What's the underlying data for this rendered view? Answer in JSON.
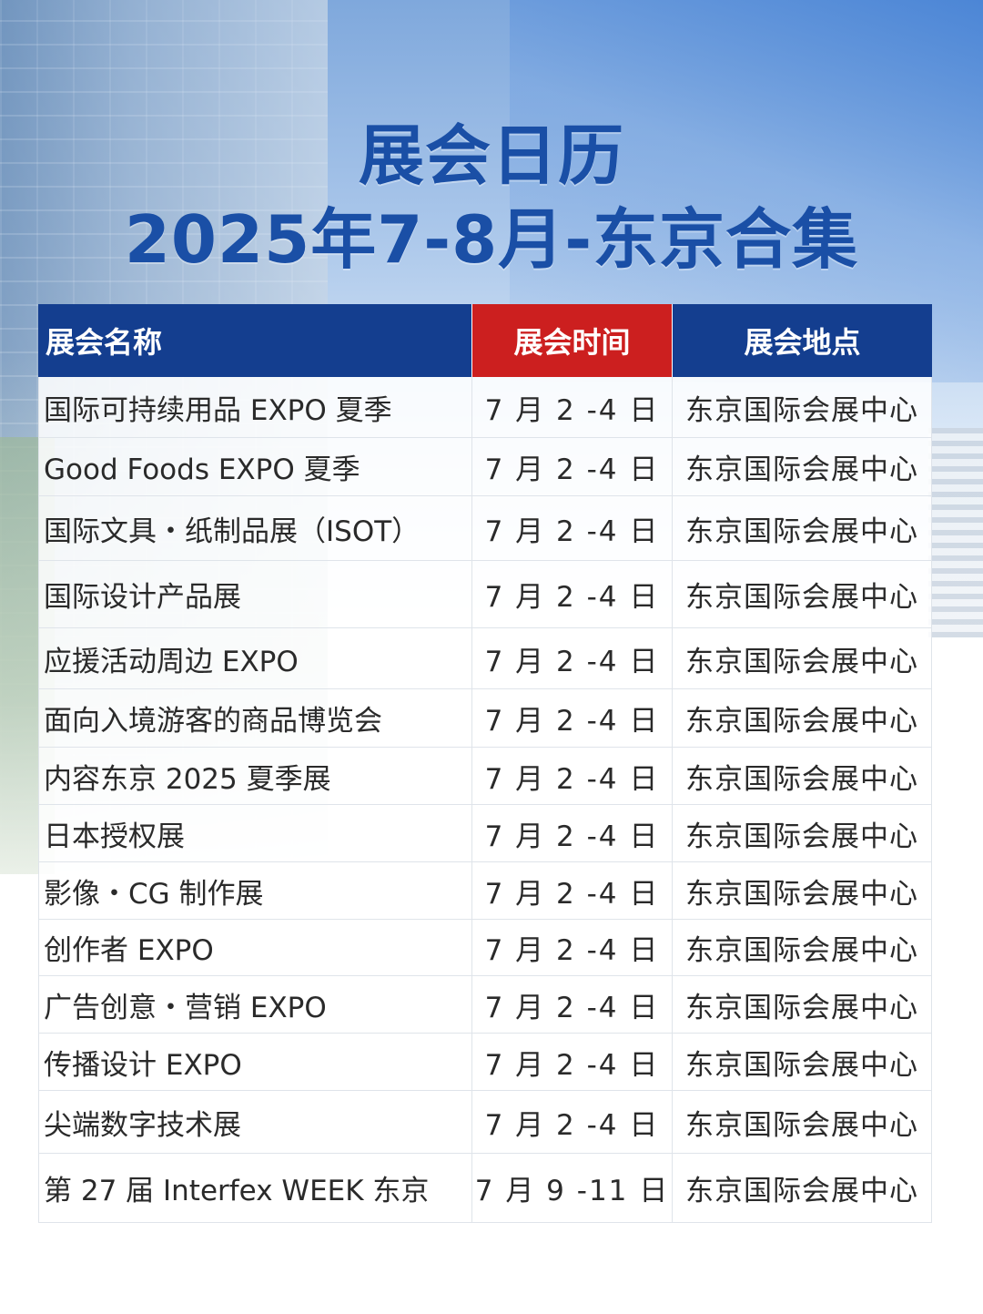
{
  "title": {
    "line1": "展会日历",
    "line2": "2025年7-8月-东京合集"
  },
  "table": {
    "headers": {
      "name": "展会名称",
      "time": "展会时间",
      "place": "展会地点"
    },
    "rows": [
      {
        "name": "国际可持续用品 EXPO 夏季",
        "time": "7 月 2 -4 日",
        "place": "东京国际会展中心"
      },
      {
        "name": "Good  Foods EXPO 夏季",
        "time": "7 月 2 -4 日",
        "place": "东京国际会展中心"
      },
      {
        "name": "国际文具・纸制品展（ISOT）",
        "time": "7 月 2 -4 日",
        "place": "东京国际会展中心"
      },
      {
        "name": "国际设计产品展",
        "time": "7 月 2 -4 日",
        "place": "东京国际会展中心"
      },
      {
        "name": "应援活动周边  EXPO",
        "time": "7 月 2 -4 日",
        "place": "东京国际会展中心"
      },
      {
        "name": "面向入境游客的商品博览会",
        "time": "7 月 2 -4 日",
        "place": "东京国际会展中心"
      },
      {
        "name": "内容东京  2025 夏季展",
        "time": "7 月 2 -4 日",
        "place": "东京国际会展中心"
      },
      {
        "name": "日本授权展",
        "time": "7 月 2 -4 日",
        "place": "东京国际会展中心"
      },
      {
        "name": "影像・CG  制作展",
        "time": "7 月 2 -4 日",
        "place": "东京国际会展中心"
      },
      {
        "name": "创作者 EXPO",
        "time": "7 月 2 -4 日",
        "place": "东京国际会展中心"
      },
      {
        "name": "广告创意・营销  EXPO",
        "time": "7 月 2 -4 日",
        "place": "东京国际会展中心"
      },
      {
        "name": "传播设计  EXPO",
        "time": "7 月 2 -4 日",
        "place": "东京国际会展中心"
      },
      {
        "name": "尖端数字技术展",
        "time": "7 月 2 -4 日",
        "place": "东京国际会展中心"
      },
      {
        "name": "第 27 届  Interfex WEEK 东京",
        "time": "7 月 9 -11 日",
        "place": "东京国际会展中心"
      }
    ]
  },
  "colors": {
    "title_blue": "#1a4fa6",
    "header_blue": "#143e8f",
    "header_red": "#cc1f1f"
  }
}
